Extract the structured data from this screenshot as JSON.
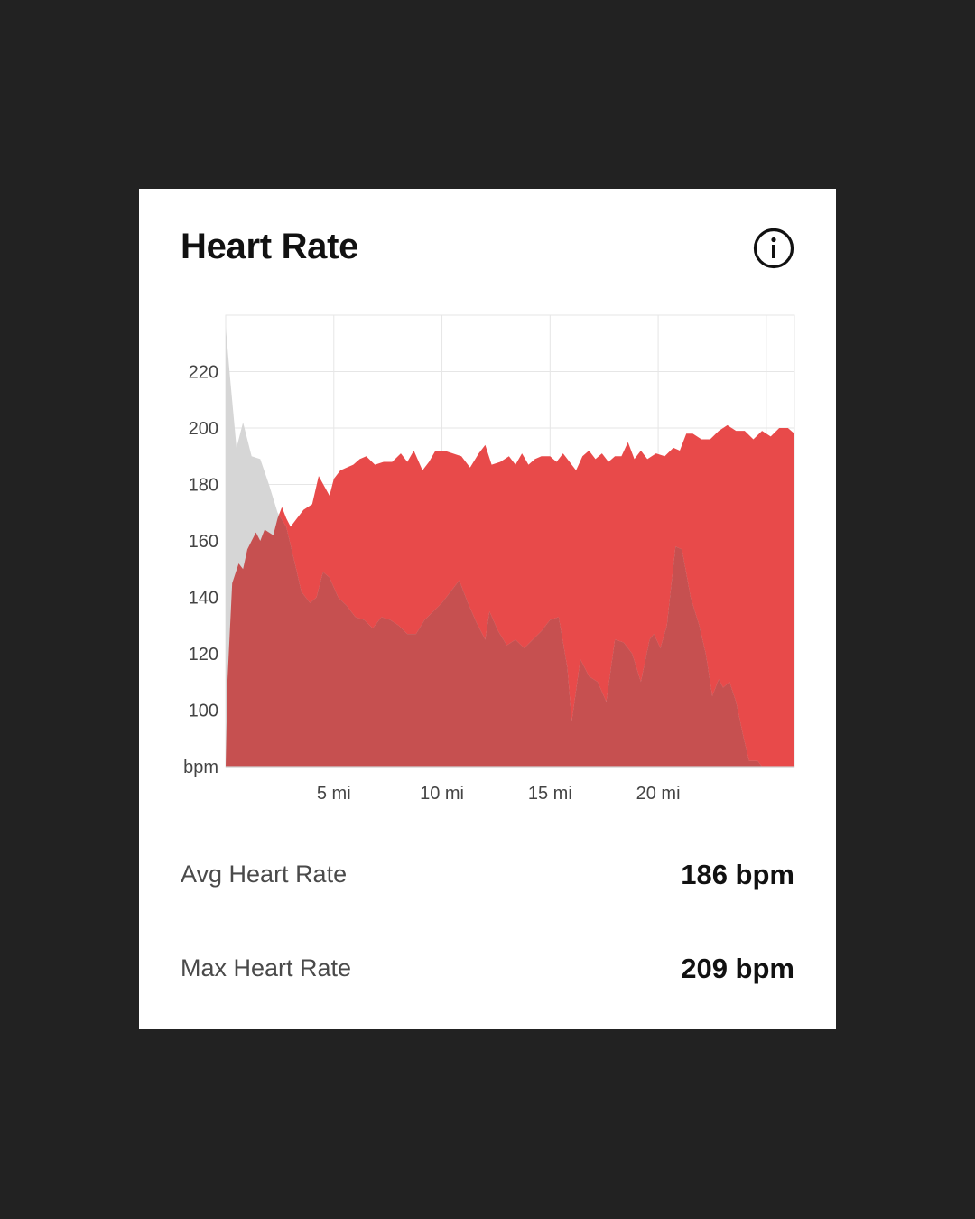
{
  "card": {
    "title": "Heart Rate",
    "info_icon": "info-circle-icon"
  },
  "colors": {
    "background": "#222222",
    "card": "#ffffff",
    "heart_rate_fill": "#e84a4a",
    "elevation_fill": "#d6d6d6",
    "overlap_fill": "#c65050",
    "grid": "#e6e6e6",
    "axis_text": "#444444"
  },
  "stats": [
    {
      "label": "Avg Heart Rate",
      "value": "186 bpm"
    },
    {
      "label": "Max Heart Rate",
      "value": "209 bpm"
    }
  ],
  "chart_data": {
    "type": "area",
    "title": "",
    "xlabel": "",
    "ylabel": "bpm",
    "xlim": [
      0,
      26.3
    ],
    "ylim": [
      80,
      240
    ],
    "x_ticks": [
      5,
      10,
      15,
      20
    ],
    "x_tick_labels": [
      "5 mi",
      "10 mi",
      "15 mi",
      "20 mi"
    ],
    "y_ticks": [
      100,
      120,
      140,
      160,
      180,
      200,
      220
    ],
    "y_tick_labels": [
      "100",
      "120",
      "140",
      "160",
      "180",
      "200",
      "220"
    ],
    "y_bottom_label": "bpm",
    "grid": true,
    "legend": "none",
    "series": [
      {
        "color": "#e84a4a",
        "points": [
          [
            0,
            80
          ],
          [
            0.08,
            110
          ],
          [
            0.3,
            145
          ],
          [
            0.6,
            152
          ],
          [
            0.8,
            150
          ],
          [
            1.0,
            157
          ],
          [
            1.2,
            160
          ],
          [
            1.4,
            163
          ],
          [
            1.6,
            160
          ],
          [
            1.8,
            164
          ],
          [
            2.0,
            163
          ],
          [
            2.2,
            162
          ],
          [
            2.4,
            168
          ],
          [
            2.6,
            172
          ],
          [
            2.8,
            168
          ],
          [
            3.0,
            165
          ],
          [
            3.3,
            168
          ],
          [
            3.6,
            171
          ],
          [
            4.0,
            173
          ],
          [
            4.3,
            183
          ],
          [
            4.8,
            176
          ],
          [
            5.0,
            182
          ],
          [
            5.3,
            185
          ],
          [
            5.6,
            186
          ],
          [
            5.9,
            187
          ],
          [
            6.2,
            189
          ],
          [
            6.5,
            190
          ],
          [
            6.9,
            187
          ],
          [
            7.3,
            188
          ],
          [
            7.7,
            188
          ],
          [
            8.1,
            191
          ],
          [
            8.4,
            188
          ],
          [
            8.7,
            192
          ],
          [
            9.1,
            185
          ],
          [
            9.4,
            188
          ],
          [
            9.7,
            192
          ],
          [
            10.1,
            192
          ],
          [
            10.5,
            191
          ],
          [
            10.9,
            190
          ],
          [
            11.3,
            186
          ],
          [
            11.7,
            191
          ],
          [
            12.0,
            194
          ],
          [
            12.3,
            187
          ],
          [
            12.7,
            188
          ],
          [
            13.1,
            190
          ],
          [
            13.4,
            187
          ],
          [
            13.7,
            191
          ],
          [
            14.0,
            187
          ],
          [
            14.3,
            189
          ],
          [
            14.6,
            190
          ],
          [
            15.0,
            190
          ],
          [
            15.3,
            188
          ],
          [
            15.6,
            191
          ],
          [
            16.0,
            187
          ],
          [
            16.2,
            185
          ],
          [
            16.5,
            190
          ],
          [
            16.8,
            192
          ],
          [
            17.1,
            189
          ],
          [
            17.4,
            191
          ],
          [
            17.7,
            188
          ],
          [
            18.0,
            190
          ],
          [
            18.3,
            190
          ],
          [
            18.6,
            195
          ],
          [
            18.9,
            189
          ],
          [
            19.2,
            192
          ],
          [
            19.5,
            189
          ],
          [
            19.9,
            191
          ],
          [
            20.3,
            190
          ],
          [
            20.7,
            193
          ],
          [
            21.0,
            192
          ],
          [
            21.3,
            198
          ],
          [
            21.6,
            198
          ],
          [
            22.0,
            196
          ],
          [
            22.4,
            196
          ],
          [
            22.8,
            199
          ],
          [
            23.2,
            201
          ],
          [
            23.6,
            199
          ],
          [
            24.0,
            199
          ],
          [
            24.4,
            196
          ],
          [
            24.8,
            199
          ],
          [
            25.2,
            197
          ],
          [
            25.6,
            200
          ],
          [
            26.0,
            200
          ],
          [
            26.3,
            198
          ],
          [
            26.3,
            80
          ]
        ]
      },
      {
        "color": "#d6d6d6",
        "points": [
          [
            0,
            80
          ],
          [
            0,
            236
          ],
          [
            0.2,
            218
          ],
          [
            0.5,
            193
          ],
          [
            0.8,
            202
          ],
          [
            1.2,
            190
          ],
          [
            1.6,
            189
          ],
          [
            2.0,
            180
          ],
          [
            2.4,
            170
          ],
          [
            2.8,
            165
          ],
          [
            3.2,
            152
          ],
          [
            3.5,
            142
          ],
          [
            3.9,
            138
          ],
          [
            4.2,
            140
          ],
          [
            4.5,
            149
          ],
          [
            4.8,
            147
          ],
          [
            5.2,
            140
          ],
          [
            5.6,
            137
          ],
          [
            6.0,
            133
          ],
          [
            6.4,
            132
          ],
          [
            6.8,
            129
          ],
          [
            7.2,
            133
          ],
          [
            7.6,
            132
          ],
          [
            8.0,
            130
          ],
          [
            8.4,
            127
          ],
          [
            8.8,
            127
          ],
          [
            9.2,
            132
          ],
          [
            9.6,
            135
          ],
          [
            10.0,
            138
          ],
          [
            10.4,
            142
          ],
          [
            10.8,
            146
          ],
          [
            11.2,
            138
          ],
          [
            11.6,
            131
          ],
          [
            12.0,
            125
          ],
          [
            12.2,
            135
          ],
          [
            12.6,
            128
          ],
          [
            13.0,
            123
          ],
          [
            13.4,
            125
          ],
          [
            13.8,
            122
          ],
          [
            14.2,
            125
          ],
          [
            14.6,
            128
          ],
          [
            15.0,
            132
          ],
          [
            15.4,
            133
          ],
          [
            15.8,
            115
          ],
          [
            16.0,
            96
          ],
          [
            16.4,
            118
          ],
          [
            16.8,
            112
          ],
          [
            17.2,
            110
          ],
          [
            17.6,
            103
          ],
          [
            18.0,
            125
          ],
          [
            18.4,
            124
          ],
          [
            18.8,
            120
          ],
          [
            19.2,
            110
          ],
          [
            19.6,
            125
          ],
          [
            19.8,
            127
          ],
          [
            20.1,
            122
          ],
          [
            20.4,
            130
          ],
          [
            20.8,
            158
          ],
          [
            21.1,
            157
          ],
          [
            21.5,
            140
          ],
          [
            21.9,
            130
          ],
          [
            22.2,
            120
          ],
          [
            22.5,
            105
          ],
          [
            22.8,
            111
          ],
          [
            23.0,
            108
          ],
          [
            23.3,
            110
          ],
          [
            23.6,
            103
          ],
          [
            23.9,
            92
          ],
          [
            24.2,
            82
          ],
          [
            24.6,
            82
          ],
          [
            24.8,
            80
          ]
        ]
      }
    ]
  }
}
